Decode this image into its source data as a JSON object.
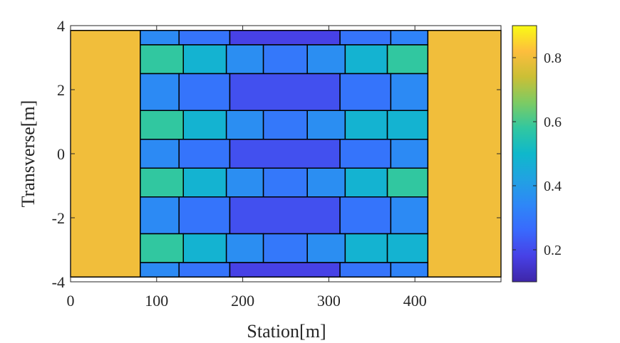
{
  "chart_data": {
    "type": "heatmap",
    "title": "",
    "xlabel": "Station[m]",
    "ylabel": "Transverse[m]",
    "xlim": [
      0,
      500
    ],
    "ylim": [
      -4,
      4
    ],
    "x_ticks": [
      0,
      100,
      200,
      300,
      400
    ],
    "y_ticks": [
      -4,
      -2,
      0,
      2,
      4
    ],
    "grid": false,
    "colormap": "parula",
    "colorbar": {
      "range": [
        0.1,
        0.9
      ],
      "ticks": [
        0.2,
        0.4,
        0.6,
        0.8
      ],
      "location": "right"
    },
    "cells": [
      {
        "x0": 0,
        "x1": 81,
        "y0": -3.85,
        "y1": 3.85,
        "value": 0.8
      },
      {
        "x0": 415,
        "x1": 500,
        "y0": -3.85,
        "y1": 3.85,
        "value": 0.8
      },
      {
        "x0": 81,
        "x1": 126,
        "y0": 3.4,
        "y1": 3.85,
        "value": 0.35
      },
      {
        "x0": 126,
        "x1": 185,
        "y0": 3.4,
        "y1": 3.85,
        "value": 0.29
      },
      {
        "x0": 185,
        "x1": 313,
        "y0": 3.4,
        "y1": 3.85,
        "value": 0.18
      },
      {
        "x0": 313,
        "x1": 372,
        "y0": 3.4,
        "y1": 3.85,
        "value": 0.29
      },
      {
        "x0": 372,
        "x1": 415,
        "y0": 3.4,
        "y1": 3.85,
        "value": 0.33
      },
      {
        "x0": 81,
        "x1": 131,
        "y0": 2.5,
        "y1": 3.4,
        "value": 0.58
      },
      {
        "x0": 131,
        "x1": 181,
        "y0": 2.5,
        "y1": 3.4,
        "value": 0.48
      },
      {
        "x0": 181,
        "x1": 224,
        "y0": 2.5,
        "y1": 3.4,
        "value": 0.36
      },
      {
        "x0": 224,
        "x1": 275,
        "y0": 2.5,
        "y1": 3.4,
        "value": 0.3
      },
      {
        "x0": 275,
        "x1": 319,
        "y0": 2.5,
        "y1": 3.4,
        "value": 0.36
      },
      {
        "x0": 319,
        "x1": 368,
        "y0": 2.5,
        "y1": 3.4,
        "value": 0.48
      },
      {
        "x0": 368,
        "x1": 415,
        "y0": 2.5,
        "y1": 3.4,
        "value": 0.58
      },
      {
        "x0": 81,
        "x1": 126,
        "y0": 1.35,
        "y1": 2.5,
        "value": 0.35
      },
      {
        "x0": 126,
        "x1": 185,
        "y0": 1.35,
        "y1": 2.5,
        "value": 0.29
      },
      {
        "x0": 185,
        "x1": 313,
        "y0": 1.35,
        "y1": 2.5,
        "value": 0.21
      },
      {
        "x0": 313,
        "x1": 372,
        "y0": 1.35,
        "y1": 2.5,
        "value": 0.29
      },
      {
        "x0": 372,
        "x1": 415,
        "y0": 1.35,
        "y1": 2.5,
        "value": 0.35
      },
      {
        "x0": 81,
        "x1": 131,
        "y0": 0.45,
        "y1": 1.35,
        "value": 0.58
      },
      {
        "x0": 131,
        "x1": 181,
        "y0": 0.45,
        "y1": 1.35,
        "value": 0.48
      },
      {
        "x0": 181,
        "x1": 224,
        "y0": 0.45,
        "y1": 1.35,
        "value": 0.36
      },
      {
        "x0": 224,
        "x1": 275,
        "y0": 0.45,
        "y1": 1.35,
        "value": 0.3
      },
      {
        "x0": 275,
        "x1": 319,
        "y0": 0.45,
        "y1": 1.35,
        "value": 0.36
      },
      {
        "x0": 319,
        "x1": 368,
        "y0": 0.45,
        "y1": 1.35,
        "value": 0.48
      },
      {
        "x0": 368,
        "x1": 415,
        "y0": 0.45,
        "y1": 1.35,
        "value": 0.48
      },
      {
        "x0": 81,
        "x1": 126,
        "y0": -0.45,
        "y1": 0.45,
        "value": 0.35
      },
      {
        "x0": 126,
        "x1": 185,
        "y0": -0.45,
        "y1": 0.45,
        "value": 0.29
      },
      {
        "x0": 185,
        "x1": 313,
        "y0": -0.45,
        "y1": 0.45,
        "value": 0.21
      },
      {
        "x0": 313,
        "x1": 372,
        "y0": -0.45,
        "y1": 0.45,
        "value": 0.29
      },
      {
        "x0": 372,
        "x1": 415,
        "y0": -0.45,
        "y1": 0.45,
        "value": 0.35
      },
      {
        "x0": 81,
        "x1": 131,
        "y0": -1.35,
        "y1": -0.45,
        "value": 0.58
      },
      {
        "x0": 131,
        "x1": 181,
        "y0": -1.35,
        "y1": -0.45,
        "value": 0.48
      },
      {
        "x0": 181,
        "x1": 224,
        "y0": -1.35,
        "y1": -0.45,
        "value": 0.36
      },
      {
        "x0": 224,
        "x1": 275,
        "y0": -1.35,
        "y1": -0.45,
        "value": 0.3
      },
      {
        "x0": 275,
        "x1": 319,
        "y0": -1.35,
        "y1": -0.45,
        "value": 0.36
      },
      {
        "x0": 319,
        "x1": 368,
        "y0": -1.35,
        "y1": -0.45,
        "value": 0.48
      },
      {
        "x0": 368,
        "x1": 415,
        "y0": -1.35,
        "y1": -0.45,
        "value": 0.58
      },
      {
        "x0": 81,
        "x1": 126,
        "y0": -2.5,
        "y1": -1.35,
        "value": 0.35
      },
      {
        "x0": 126,
        "x1": 185,
        "y0": -2.5,
        "y1": -1.35,
        "value": 0.29
      },
      {
        "x0": 185,
        "x1": 313,
        "y0": -2.5,
        "y1": -1.35,
        "value": 0.21
      },
      {
        "x0": 313,
        "x1": 372,
        "y0": -2.5,
        "y1": -1.35,
        "value": 0.29
      },
      {
        "x0": 372,
        "x1": 415,
        "y0": -2.5,
        "y1": -1.35,
        "value": 0.35
      },
      {
        "x0": 81,
        "x1": 131,
        "y0": -3.4,
        "y1": -2.5,
        "value": 0.58
      },
      {
        "x0": 131,
        "x1": 181,
        "y0": -3.4,
        "y1": -2.5,
        "value": 0.48
      },
      {
        "x0": 181,
        "x1": 224,
        "y0": -3.4,
        "y1": -2.5,
        "value": 0.36
      },
      {
        "x0": 224,
        "x1": 275,
        "y0": -3.4,
        "y1": -2.5,
        "value": 0.3
      },
      {
        "x0": 275,
        "x1": 319,
        "y0": -3.4,
        "y1": -2.5,
        "value": 0.36
      },
      {
        "x0": 319,
        "x1": 368,
        "y0": -3.4,
        "y1": -2.5,
        "value": 0.48
      },
      {
        "x0": 368,
        "x1": 415,
        "y0": -3.4,
        "y1": -2.5,
        "value": 0.48
      },
      {
        "x0": 81,
        "x1": 126,
        "y0": -3.85,
        "y1": -3.4,
        "value": 0.35
      },
      {
        "x0": 126,
        "x1": 185,
        "y0": -3.85,
        "y1": -3.4,
        "value": 0.29
      },
      {
        "x0": 185,
        "x1": 313,
        "y0": -3.85,
        "y1": -3.4,
        "value": 0.18
      },
      {
        "x0": 313,
        "x1": 372,
        "y0": -3.85,
        "y1": -3.4,
        "value": 0.29
      },
      {
        "x0": 372,
        "x1": 415,
        "y0": -3.85,
        "y1": -3.4,
        "value": 0.33
      }
    ]
  }
}
